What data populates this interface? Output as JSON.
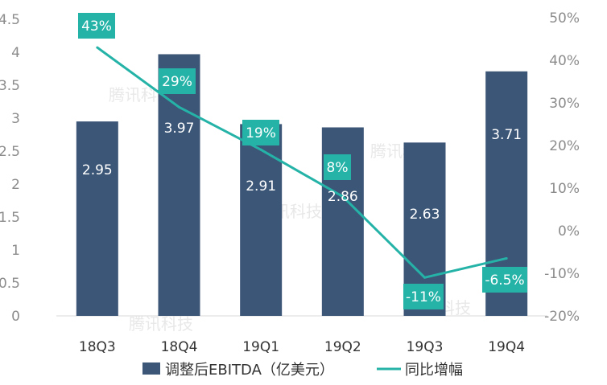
{
  "chart_data": {
    "type": "bar+line",
    "categories": [
      "18Q3",
      "18Q4",
      "19Q1",
      "19Q2",
      "19Q3",
      "19Q4"
    ],
    "series": [
      {
        "name": "调整后EBITDA（亿美元）",
        "type": "bar",
        "axis": "left",
        "values": [
          2.95,
          3.97,
          2.91,
          2.86,
          2.63,
          3.71
        ],
        "labels": [
          "2.95",
          "3.97",
          "2.91",
          "2.86",
          "2.63",
          "3.71"
        ],
        "color": "#3c5677"
      },
      {
        "name": "同比增幅",
        "type": "line",
        "axis": "right",
        "values": [
          43,
          29,
          19,
          8,
          -11,
          -6.5
        ],
        "labels": [
          "43%",
          "29%",
          "19%",
          "8%",
          "-11%",
          "-6.5%"
        ],
        "color": "#25b3a8"
      }
    ],
    "left_axis": {
      "ylim": [
        0,
        4.5
      ],
      "ticks": [
        0,
        0.5,
        1,
        1.5,
        2,
        2.5,
        3,
        3.5,
        4,
        4.5
      ],
      "tick_labels": [
        "0",
        "0.5",
        "1",
        "1.5",
        "2",
        "2.5",
        "3",
        "3.5",
        "4",
        "4.5"
      ]
    },
    "right_axis": {
      "ylim": [
        -20,
        50
      ],
      "ticks": [
        -20,
        -10,
        0,
        10,
        20,
        30,
        40,
        50
      ],
      "tick_labels": [
        "-20%",
        "-10%",
        "0%",
        "10%",
        "20%",
        "30%",
        "40%",
        "50%"
      ]
    },
    "grid": false,
    "legend": "bottom",
    "watermark": "腾讯科技"
  }
}
